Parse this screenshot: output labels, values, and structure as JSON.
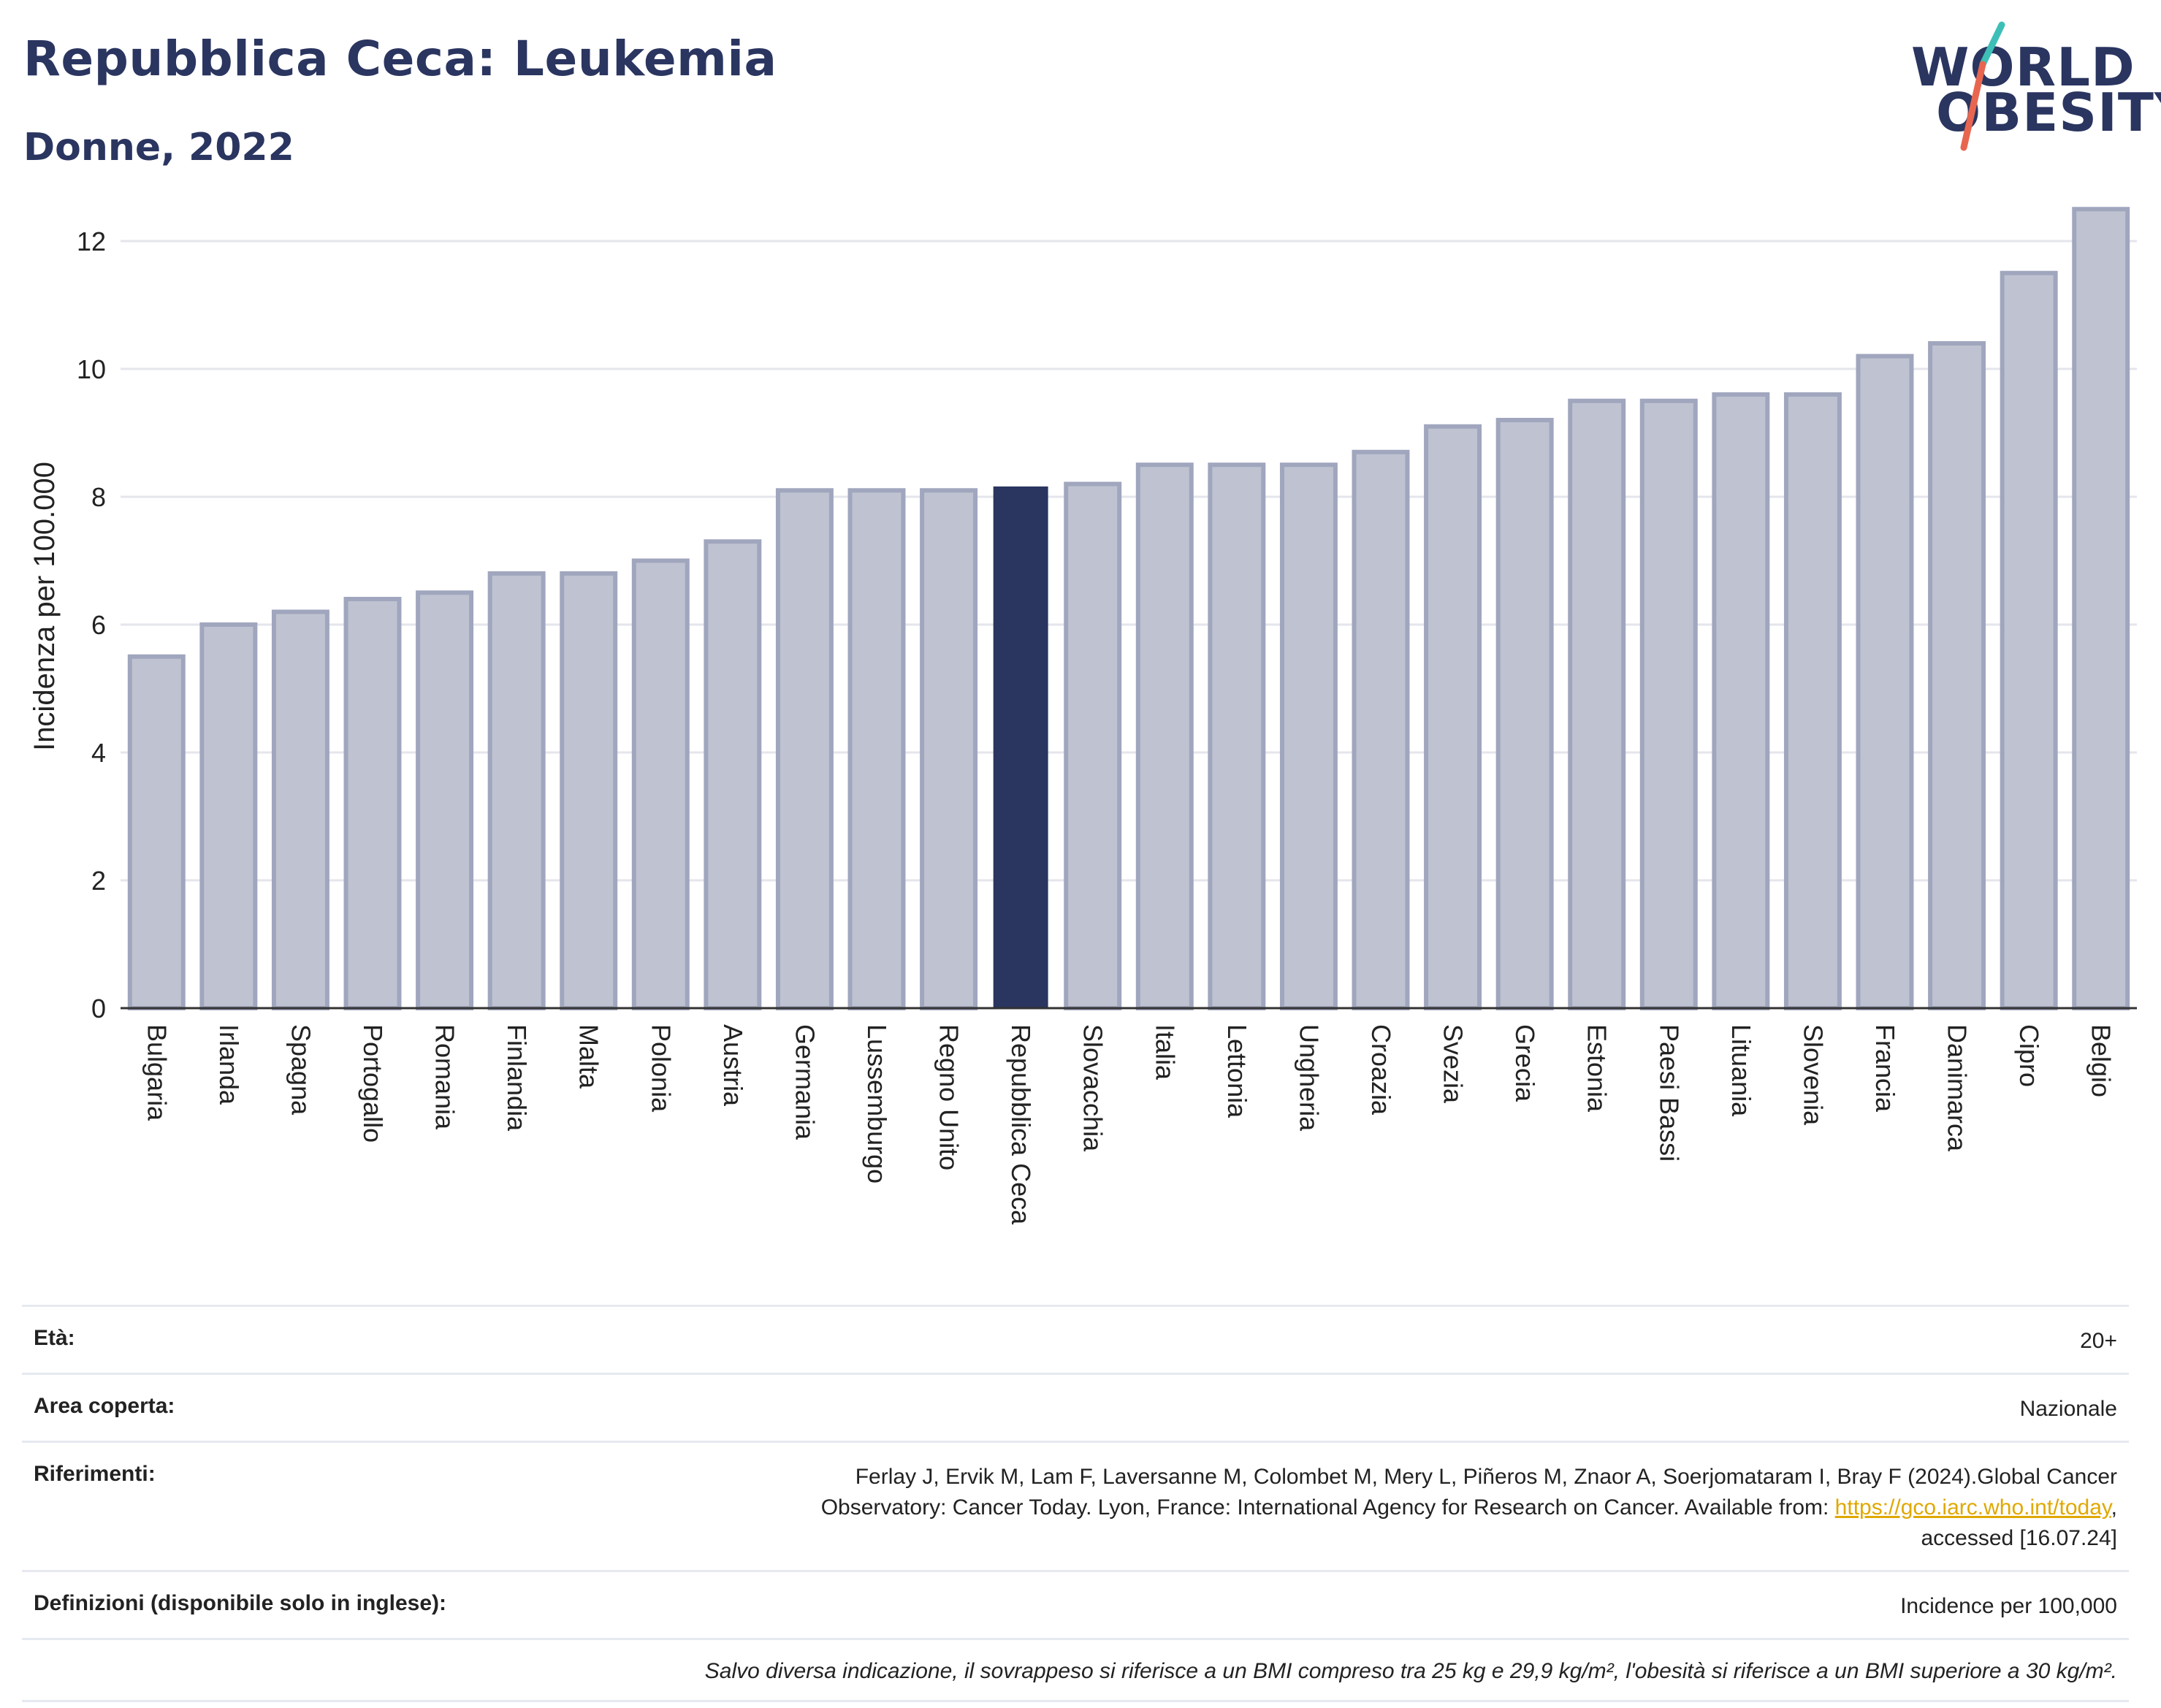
{
  "header": {
    "title": "Repubblica Ceca: Leukemia",
    "subtitle": "Donne, 2022"
  },
  "logo": {
    "line1": "WORLD",
    "line2": "OBESITY",
    "accent_colors": [
      "#3dbfb7",
      "#e8664f"
    ]
  },
  "colors": {
    "highlight_bar": "#2a3560",
    "normal_bar_fill": "#bfc3d1",
    "normal_bar_stroke": "#a0a6bd",
    "gridline": "#e4e6ec",
    "axis": "#333333"
  },
  "chart_data": {
    "type": "bar",
    "title": "Repubblica Ceca: Leukemia",
    "subtitle": "Donne, 2022",
    "xlabel": "",
    "ylabel": "Incidenza per 100.000",
    "ylim": [
      0,
      12.8
    ],
    "yticks": [
      0,
      2,
      4,
      6,
      8,
      10,
      12
    ],
    "grid": true,
    "highlight": "Repubblica Ceca",
    "categories": [
      "Bulgaria",
      "Irlanda",
      "Spagna",
      "Portogallo",
      "Romania",
      "Finlandia",
      "Malta",
      "Polonia",
      "Austria",
      "Germania",
      "Lussemburgo",
      "Regno Unito",
      "Repubblica Ceca",
      "Slovacchia",
      "Italia",
      "Lettonia",
      "Ungheria",
      "Croazia",
      "Svezia",
      "Grecia",
      "Estonia",
      "Paesi Bassi",
      "Lituania",
      "Slovenia",
      "Francia",
      "Danimarca",
      "Cipro",
      "Belgio"
    ],
    "values": [
      5.5,
      6.0,
      6.2,
      6.4,
      6.5,
      6.8,
      6.8,
      7.0,
      7.3,
      8.1,
      8.1,
      8.1,
      8.15,
      8.2,
      8.5,
      8.5,
      8.5,
      8.7,
      9.1,
      9.2,
      9.5,
      9.5,
      9.6,
      9.6,
      10.2,
      10.4,
      11.5,
      12.5
    ]
  },
  "info": {
    "rows": [
      {
        "key": "Età:",
        "value": "20+"
      },
      {
        "key": "Area coperta:",
        "value": "Nazionale"
      },
      {
        "key": "Riferimenti:",
        "value_line1": "Ferlay J, Ervik M, Lam F, Laversanne M, Colombet M, Mery L, Piñeros M, Znaor A, Soerjomataram I, Bray F (2024).Global Cancer",
        "value_line2_pre": "Observatory: Cancer Today. Lyon, France: International Agency for Research on Cancer. Available from: ",
        "link": "https://gco.iarc.who.int/today",
        "value_line2_post": ",",
        "value_line3": "accessed [16.07.24]"
      },
      {
        "key": "Definizioni (disponibile solo in inglese):",
        "value": "Incidence per 100,000"
      }
    ],
    "note": "Salvo diversa indicazione, il sovrappeso si riferisce a un BMI compreso tra 25 kg e 29,9 kg/m², l'obesità si riferisce a un BMI superiore a 30 kg/m²."
  }
}
